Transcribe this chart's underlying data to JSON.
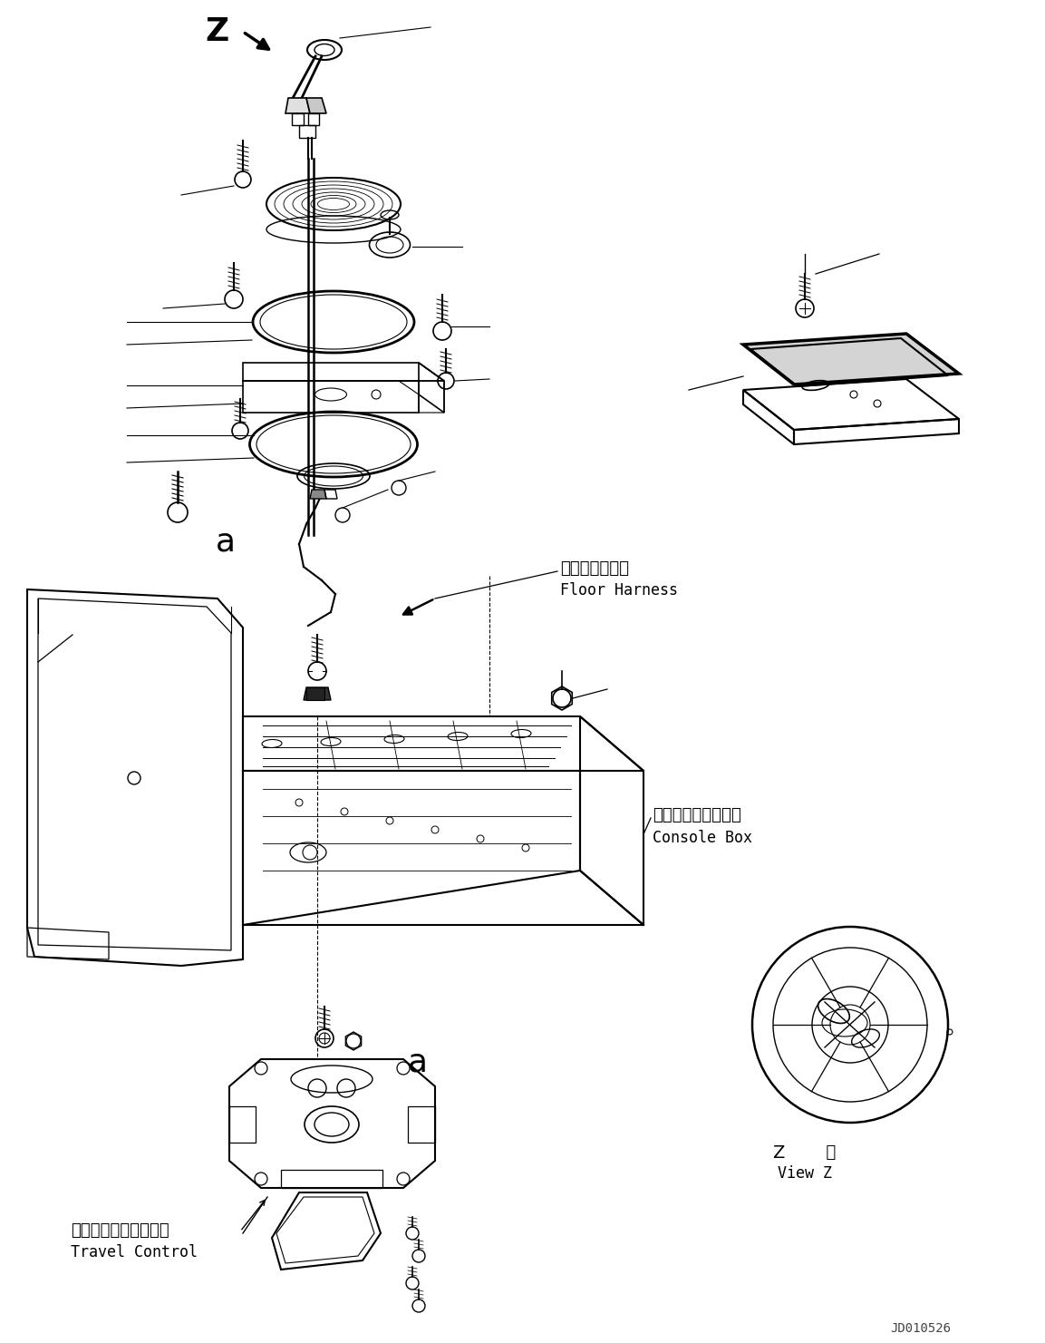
{
  "background_color": "#ffffff",
  "image_id": "JD010526",
  "labels": {
    "floor_harness_jp": "フロアハーネス",
    "floor_harness_en": "Floor Harness",
    "console_box_jp": "コンソールボックス",
    "console_box_en": "Console Box",
    "travel_control_jp": "トラベルコントロール",
    "travel_control_en": "Travel Control",
    "view_z_jp": "Z　視",
    "view_z_en": "View Z"
  },
  "lc": "#000000",
  "lw": 1.0
}
